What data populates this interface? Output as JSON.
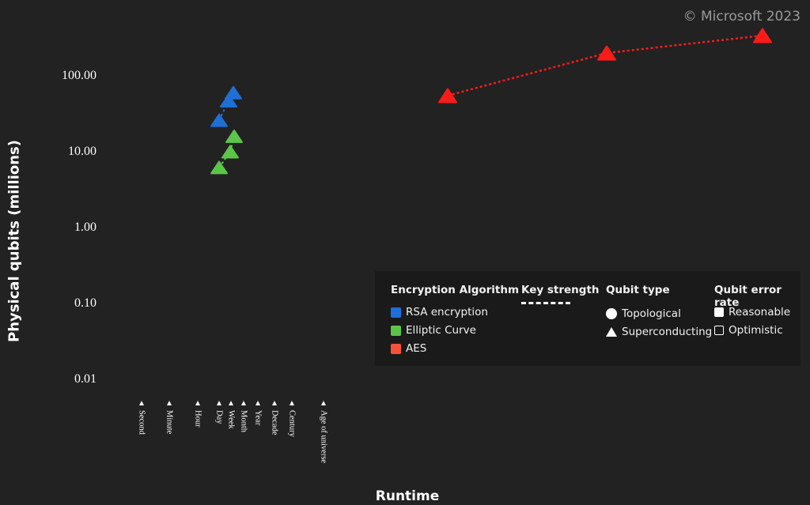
{
  "watermark": "© Microsoft 2023",
  "chart_data": {
    "type": "scatter",
    "title": "",
    "xlabel": "Runtime",
    "ylabel": "Physical qubits (millions)",
    "y_scale": "log",
    "ylim": [
      0.01,
      300
    ],
    "yticks": [
      "100.00",
      "10.00",
      "1.00",
      "0.10",
      "0.01"
    ],
    "ytick_values": [
      100,
      10,
      1,
      0.1,
      0.01
    ],
    "xticks": [
      "Second",
      "Minute",
      "Hour",
      "Day",
      "Week",
      "Month",
      "Year",
      "Decade",
      "Century",
      "Age of universe"
    ],
    "grid": false,
    "legend_position": "bottom-right",
    "series": [
      {
        "name": "RSA encryption",
        "color": "#1f6fd6",
        "marker": "triangle",
        "linestyle": "dotted",
        "points": [
          {
            "x": "Day",
            "y": 26
          },
          {
            "x": "Week",
            "y": 47
          },
          {
            "x": "Week",
            "y": 60
          }
        ]
      },
      {
        "name": "Elliptic Curve",
        "color": "#5dc44a",
        "marker": "triangle",
        "linestyle": "dotted",
        "points": [
          {
            "x": "Day",
            "y": 6.2
          },
          {
            "x": "Week",
            "y": 10
          },
          {
            "x": "Week",
            "y": 16
          }
        ]
      },
      {
        "name": "AES",
        "color": "#ff1a1a",
        "marker": "triangle",
        "linestyle": "dotted",
        "points": [
          {
            "x": "beyond Age of universe",
            "y": 55
          },
          {
            "x": "beyond Age of universe",
            "y": 200
          },
          {
            "x": "beyond Age of universe",
            "y": 340
          }
        ]
      }
    ]
  },
  "legend": {
    "algorithm_header": "Encryption Algorithm",
    "algorithms": [
      {
        "label": "RSA encryption",
        "color": "#1f6fd6"
      },
      {
        "label": "Elliptic Curve",
        "color": "#5dc44a"
      },
      {
        "label": "AES",
        "color": "#f4533a"
      }
    ],
    "key_header": "Key strength",
    "qubit_header": "Qubit type",
    "qubit_types": [
      "Topological",
      "Superconducting"
    ],
    "error_header": "Qubit error rate",
    "error_rates": [
      "Reasonable",
      "Optimistic"
    ]
  }
}
